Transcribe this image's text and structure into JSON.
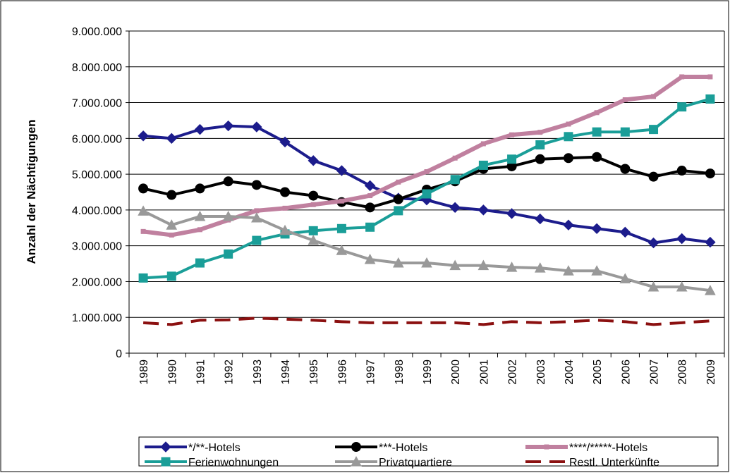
{
  "chart_data": {
    "type": "line",
    "ylabel": "Anzahl der Nächtigungen",
    "categories": [
      "1989",
      "1990",
      "1991",
      "1992",
      "1993",
      "1994",
      "1995",
      "1996",
      "1997",
      "1998",
      "1999",
      "2000",
      "2001",
      "2002",
      "2003",
      "2004",
      "2005",
      "2006",
      "2007",
      "2008",
      "2009"
    ],
    "ylim": [
      0,
      9000000
    ],
    "yticks": [
      0,
      {
        "value": 1000000,
        "label": "1.000.000"
      },
      {
        "value": 2000000,
        "label": "2.000.000"
      },
      {
        "value": 3000000,
        "label": "3.000.000"
      },
      {
        "value": 4000000,
        "label": "4.000.000"
      },
      {
        "value": 5000000,
        "label": "5.000.000"
      },
      {
        "value": 6000000,
        "label": "6.000.000"
      },
      {
        "value": 7000000,
        "label": "7.000.000"
      },
      {
        "value": 8000000,
        "label": "8.000.000"
      },
      {
        "value": 9000000,
        "label": "9.000.000"
      }
    ],
    "grid": true,
    "legend": "bottom",
    "series": [
      {
        "name": "*/**-Hotels",
        "color": "#1c1c8c",
        "marker": "diamond",
        "values": [
          6070000,
          6000000,
          6250000,
          6350000,
          6320000,
          5900000,
          5380000,
          5100000,
          4680000,
          4330000,
          4280000,
          4070000,
          4000000,
          3900000,
          3750000,
          3580000,
          3480000,
          3380000,
          3080000,
          3200000,
          3100000
        ]
      },
      {
        "name": "***-Hotels",
        "color": "#000000",
        "marker": "circle",
        "values": [
          4600000,
          4420000,
          4600000,
          4800000,
          4700000,
          4500000,
          4400000,
          4220000,
          4070000,
          4300000,
          4570000,
          4800000,
          5150000,
          5220000,
          5420000,
          5450000,
          5480000,
          5150000,
          4930000,
          5100000,
          5020000
        ]
      },
      {
        "name": "****/*****-Hotels",
        "color": "#c0809f",
        "marker": "smallsquare",
        "values": [
          3400000,
          3300000,
          3450000,
          3720000,
          3980000,
          4050000,
          4150000,
          4250000,
          4400000,
          4780000,
          5070000,
          5450000,
          5850000,
          6100000,
          6170000,
          6400000,
          6720000,
          7080000,
          7170000,
          7720000,
          7720000
        ]
      },
      {
        "name": "Ferienwohnungen",
        "color": "#1a9e98",
        "marker": "square",
        "values": [
          2100000,
          2150000,
          2520000,
          2770000,
          3150000,
          3330000,
          3420000,
          3480000,
          3520000,
          3980000,
          4450000,
          4850000,
          5250000,
          5420000,
          5820000,
          6050000,
          6180000,
          6180000,
          6250000,
          6880000,
          7100000
        ]
      },
      {
        "name": "Privatquartiere",
        "color": "#999999",
        "marker": "triangle",
        "values": [
          3970000,
          3580000,
          3820000,
          3820000,
          3780000,
          3430000,
          3150000,
          2870000,
          2620000,
          2520000,
          2520000,
          2450000,
          2450000,
          2400000,
          2380000,
          2300000,
          2300000,
          2080000,
          1850000,
          1850000,
          1750000
        ]
      },
      {
        "name": "Restl. Unterkünfte",
        "color": "#8b1010",
        "marker": "none",
        "dash": true,
        "values": [
          850000,
          800000,
          920000,
          930000,
          980000,
          950000,
          920000,
          880000,
          850000,
          850000,
          850000,
          850000,
          800000,
          880000,
          850000,
          880000,
          920000,
          880000,
          800000,
          850000,
          900000
        ]
      }
    ]
  }
}
